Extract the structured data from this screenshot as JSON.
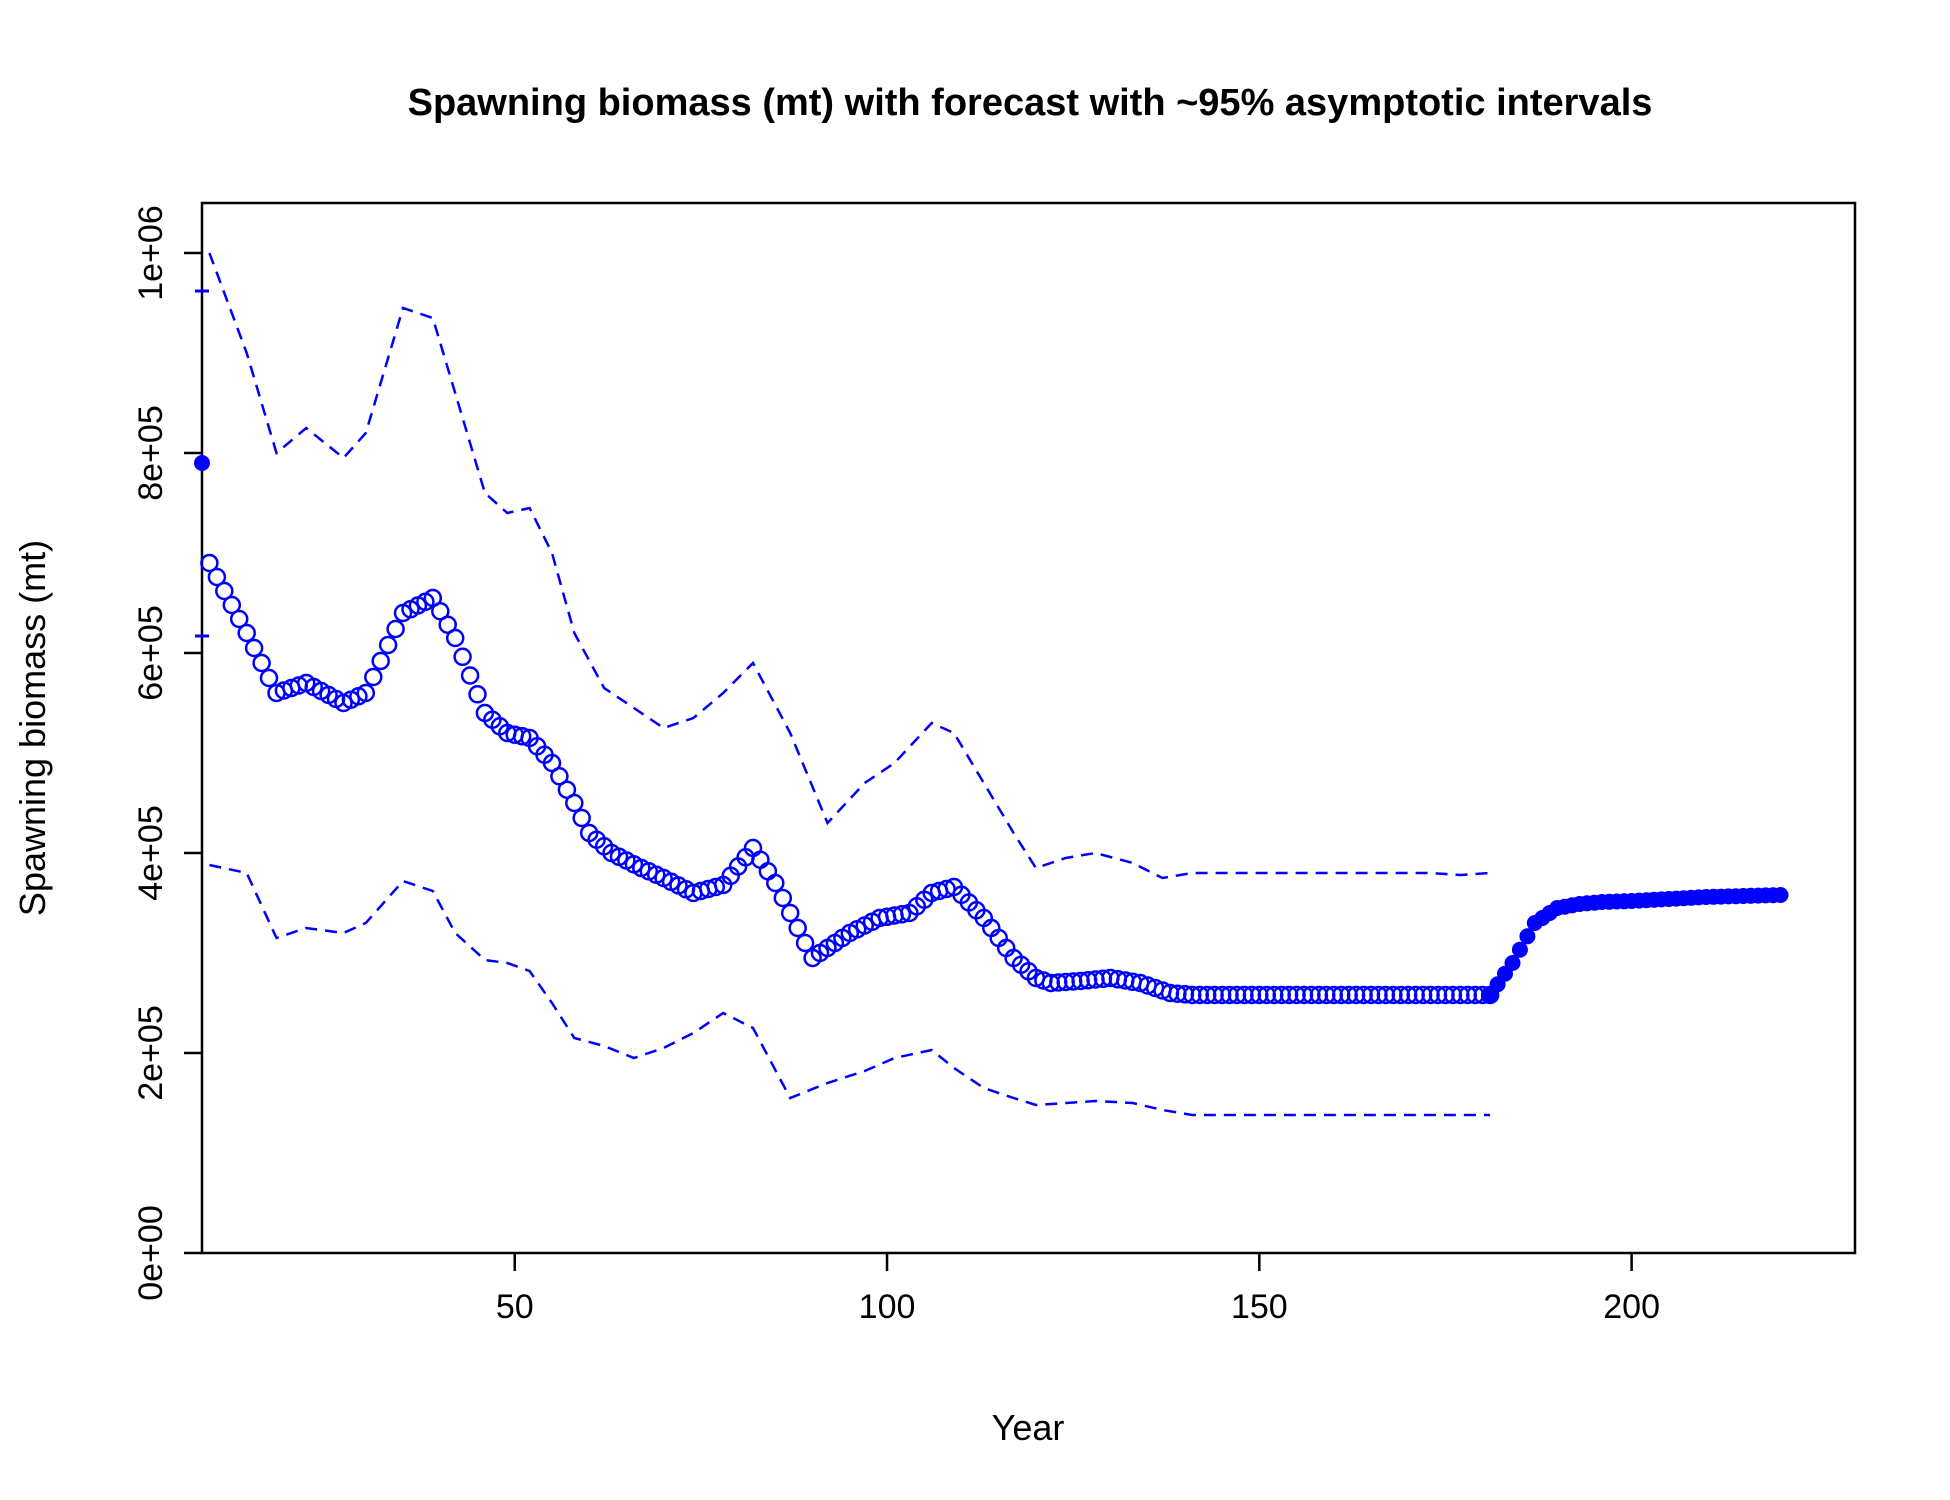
{
  "chart_data": {
    "type": "line",
    "title": "Spawning biomass (mt) with forecast with ~95% asymptotic intervals",
    "xlabel": "Year",
    "ylabel": "Spawning biomass (mt)",
    "xlim": [
      8,
      230
    ],
    "ylim": [
      0,
      1050000
    ],
    "x_ticks": [
      50,
      100,
      150,
      200
    ],
    "x_tick_labels": [
      "50",
      "100",
      "150",
      "200"
    ],
    "y_ticks": [
      0,
      200000,
      400000,
      600000,
      800000,
      1000000
    ],
    "y_tick_labels": [
      "0e+00",
      "2e+05",
      "4e+05",
      "6e+05",
      "8e+05",
      "1e+06"
    ],
    "grid": false,
    "color": "#0000FF",
    "virgin_point": {
      "x": 8,
      "estimate": 790000,
      "upper": 962000,
      "lower": 617000
    },
    "series": [
      {
        "role": "estimate",
        "style": "open-circles",
        "x": [
          9,
          14,
          18,
          22,
          27,
          30,
          35,
          39,
          42,
          46,
          49,
          52,
          55,
          58,
          60,
          63,
          67,
          70,
          74,
          78,
          82,
          85,
          90,
          95,
          99,
          103,
          106,
          109,
          113,
          117,
          120,
          122,
          126,
          130,
          134,
          138,
          141,
          144,
          148,
          153,
          157,
          161,
          165,
          169,
          173,
          177,
          180,
          181
        ],
        "y": [
          690000,
          620000,
          560000,
          570000,
          550000,
          560000,
          640000,
          655000,
          615000,
          540000,
          520000,
          515000,
          490000,
          450000,
          420000,
          400000,
          385000,
          375000,
          360000,
          368000,
          405000,
          370000,
          295000,
          320000,
          335000,
          340000,
          360000,
          366000,
          335000,
          295000,
          275000,
          270000,
          272000,
          275000,
          270000,
          260000,
          258000,
          258000,
          258000,
          258000,
          258000,
          258000,
          258000,
          258000,
          258000,
          258000,
          258000,
          258000
        ]
      },
      {
        "role": "forecast",
        "style": "filled-circles",
        "x": [
          181,
          184,
          187,
          190,
          193,
          196,
          200,
          205,
          210,
          215,
          220
        ],
        "y": [
          258000,
          290000,
          330000,
          345000,
          349000,
          351000,
          352000,
          354000,
          356000,
          357000,
          358000
        ]
      },
      {
        "role": "upper-95",
        "style": "dashed",
        "x": [
          9,
          14,
          18,
          22,
          27,
          30,
          35,
          39,
          42,
          46,
          49,
          52,
          55,
          58,
          62,
          66,
          70,
          74,
          78,
          82,
          87,
          92,
          97,
          101,
          106,
          109,
          113,
          117,
          120,
          124,
          128,
          133,
          137,
          141,
          145,
          149,
          153,
          157,
          161,
          165,
          169,
          173,
          177,
          181
        ],
        "y": [
          1000000,
          900000,
          800000,
          825000,
          795000,
          820000,
          945000,
          935000,
          860000,
          760000,
          740000,
          745000,
          700000,
          620000,
          565000,
          545000,
          525000,
          535000,
          560000,
          590000,
          520000,
          430000,
          470000,
          490000,
          530000,
          520000,
          470000,
          420000,
          385000,
          395000,
          400000,
          390000,
          375000,
          380000,
          380000,
          380000,
          380000,
          380000,
          380000,
          380000,
          380000,
          380000,
          378000,
          380000
        ]
      },
      {
        "role": "lower-95",
        "style": "dashed",
        "x": [
          9,
          14,
          18,
          22,
          27,
          30,
          35,
          39,
          42,
          46,
          49,
          52,
          55,
          58,
          62,
          66,
          70,
          74,
          78,
          82,
          87,
          92,
          97,
          101,
          106,
          109,
          113,
          117,
          120,
          124,
          128,
          133,
          137,
          141,
          145,
          149,
          153,
          157,
          161,
          165,
          169,
          173,
          177,
          181
        ],
        "y": [
          388000,
          380000,
          315000,
          325000,
          320000,
          330000,
          372000,
          362000,
          320000,
          293000,
          290000,
          282000,
          250000,
          215000,
          207000,
          195000,
          205000,
          220000,
          240000,
          225000,
          155000,
          170000,
          182000,
          195000,
          203000,
          185000,
          165000,
          155000,
          148000,
          150000,
          152000,
          150000,
          143000,
          138000,
          138000,
          138000,
          138000,
          138000,
          138000,
          138000,
          138000,
          138000,
          138000,
          138000
        ]
      }
    ]
  }
}
